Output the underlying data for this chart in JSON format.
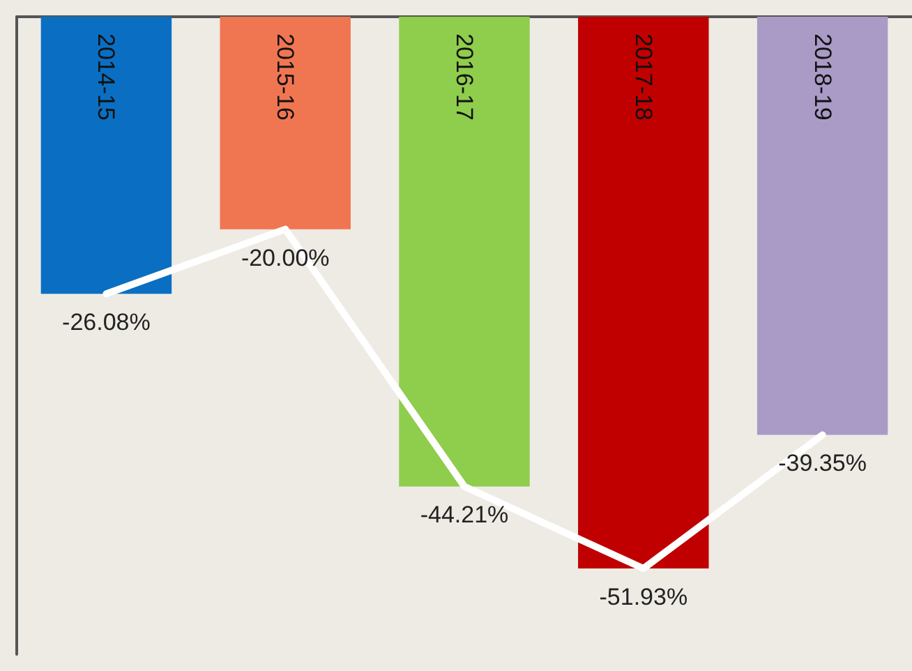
{
  "chart_data": {
    "type": "bar",
    "categories": [
      "2014-15",
      "2015-16",
      "2016-17",
      "2017-18",
      "2018-19"
    ],
    "series": [
      {
        "colors": [
          "#0a6fc2",
          "#f07652",
          "#8fcd4d",
          "#c00000",
          "#a99bc6"
        ],
        "values": [
          -26.08,
          -20.0,
          -44.21,
          -51.93,
          -39.35
        ],
        "value_labels": [
          "-26.08%",
          "-20.00%",
          "-44.21%",
          "-51.93%",
          "-39.35%"
        ]
      },
      {
        "type": "line",
        "color": "#ffffff",
        "values": [
          -26.08,
          -20.0,
          -44.21,
          -51.93,
          -39.35
        ]
      }
    ],
    "grid": false,
    "line_style": "solid"
  }
}
